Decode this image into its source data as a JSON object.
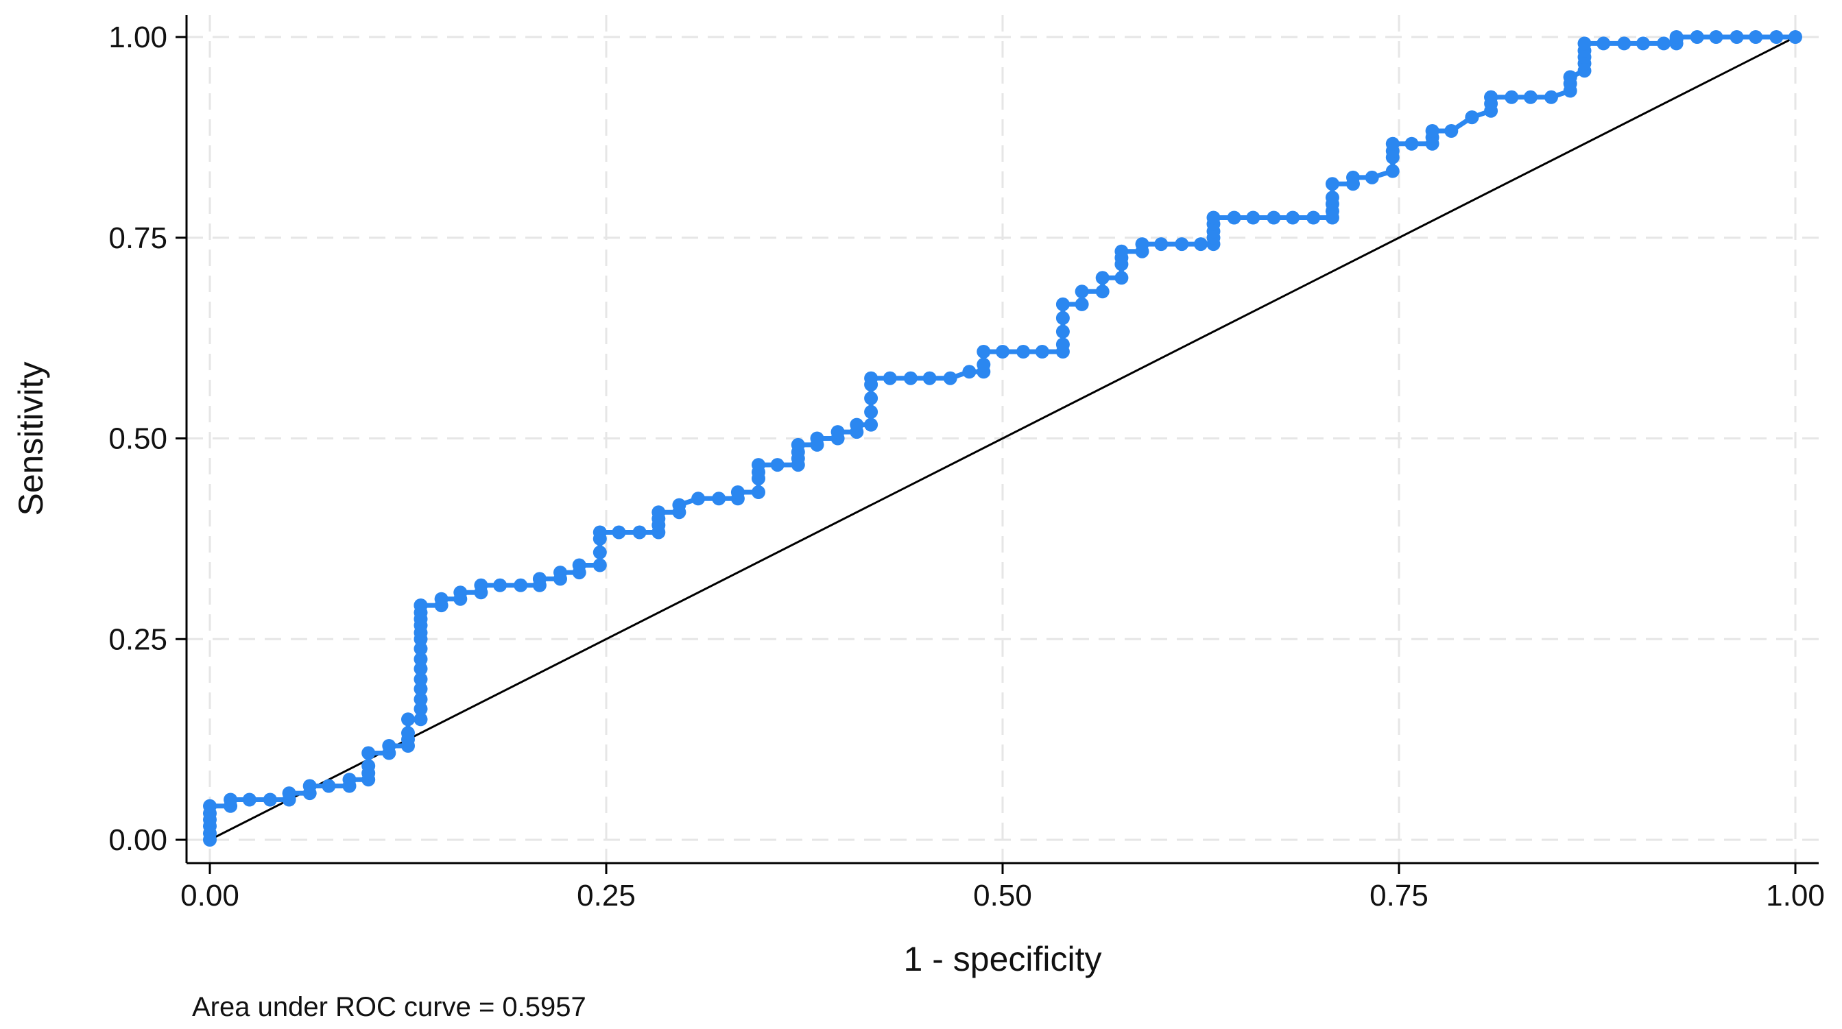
{
  "chart_data": {
    "type": "line",
    "title": "",
    "xlabel": "1 - specificity",
    "ylabel": "Sensitivity",
    "xlim": [
      0,
      1
    ],
    "ylim": [
      0,
      1
    ],
    "x_ticks": [
      "0.00",
      "0.25",
      "0.50",
      "0.75",
      "1.00"
    ],
    "y_ticks": [
      "0.00",
      "0.25",
      "0.50",
      "0.75",
      "1.00"
    ],
    "grid": true,
    "legend": "none",
    "note": "Area under ROC curve = 0.5957",
    "colors": {
      "roc": "#2b87f0",
      "reference": "#000000",
      "grid": "#e6e6e6"
    },
    "reference_line": {
      "x": [
        0,
        1
      ],
      "y": [
        0,
        1
      ]
    },
    "series": [
      {
        "marker": "circle",
        "x": [
          0.0,
          0.0,
          0.0,
          0.0,
          0.0,
          0.0,
          0.013,
          0.013,
          0.025,
          0.038,
          0.05,
          0.05,
          0.063,
          0.063,
          0.075,
          0.088,
          0.088,
          0.1,
          0.1,
          0.1,
          0.1,
          0.113,
          0.113,
          0.125,
          0.125,
          0.125,
          0.125,
          0.133,
          0.133,
          0.133,
          0.133,
          0.133,
          0.133,
          0.133,
          0.133,
          0.133,
          0.133,
          0.133,
          0.133,
          0.133,
          0.133,
          0.133,
          0.133,
          0.146,
          0.146,
          0.158,
          0.158,
          0.171,
          0.171,
          0.183,
          0.196,
          0.208,
          0.208,
          0.221,
          0.221,
          0.233,
          0.233,
          0.246,
          0.246,
          0.246,
          0.246,
          0.258,
          0.271,
          0.283,
          0.283,
          0.283,
          0.283,
          0.296,
          0.296,
          0.308,
          0.321,
          0.333,
          0.333,
          0.346,
          0.346,
          0.346,
          0.346,
          0.358,
          0.371,
          0.371,
          0.371,
          0.371,
          0.383,
          0.383,
          0.396,
          0.396,
          0.408,
          0.408,
          0.417,
          0.417,
          0.417,
          0.417,
          0.417,
          0.429,
          0.442,
          0.454,
          0.467,
          0.479,
          0.488,
          0.488,
          0.488,
          0.5,
          0.513,
          0.525,
          0.538,
          0.538,
          0.538,
          0.538,
          0.538,
          0.55,
          0.55,
          0.563,
          0.563,
          0.575,
          0.575,
          0.575,
          0.575,
          0.588,
          0.588,
          0.6,
          0.613,
          0.625,
          0.633,
          0.633,
          0.633,
          0.633,
          0.633,
          0.646,
          0.658,
          0.671,
          0.683,
          0.696,
          0.708,
          0.708,
          0.708,
          0.708,
          0.708,
          0.721,
          0.721,
          0.733,
          0.746,
          0.746,
          0.746,
          0.746,
          0.758,
          0.771,
          0.771,
          0.771,
          0.783,
          0.796,
          0.796,
          0.808,
          0.808,
          0.808,
          0.808,
          0.821,
          0.833,
          0.846,
          0.858,
          0.858,
          0.858,
          0.858,
          0.867,
          0.867,
          0.867,
          0.867,
          0.867,
          0.879,
          0.892,
          0.904,
          0.917,
          0.925,
          0.925,
          0.925,
          0.938,
          0.95,
          0.963,
          0.975,
          0.988,
          1.0
        ],
        "y": [
          0.0,
          0.008,
          0.017,
          0.025,
          0.033,
          0.042,
          0.042,
          0.05,
          0.05,
          0.05,
          0.05,
          0.058,
          0.058,
          0.067,
          0.067,
          0.067,
          0.075,
          0.075,
          0.083,
          0.092,
          0.108,
          0.108,
          0.117,
          0.117,
          0.125,
          0.133,
          0.15,
          0.15,
          0.163,
          0.175,
          0.188,
          0.2,
          0.213,
          0.225,
          0.238,
          0.25,
          0.258,
          0.267,
          0.275,
          0.283,
          0.292,
          0.292,
          0.292,
          0.292,
          0.3,
          0.3,
          0.308,
          0.308,
          0.317,
          0.317,
          0.317,
          0.317,
          0.325,
          0.325,
          0.333,
          0.333,
          0.342,
          0.342,
          0.358,
          0.375,
          0.383,
          0.383,
          0.383,
          0.383,
          0.392,
          0.4,
          0.408,
          0.408,
          0.417,
          0.425,
          0.425,
          0.425,
          0.433,
          0.433,
          0.45,
          0.458,
          0.467,
          0.467,
          0.467,
          0.475,
          0.483,
          0.492,
          0.492,
          0.5,
          0.5,
          0.508,
          0.508,
          0.517,
          0.517,
          0.533,
          0.55,
          0.567,
          0.575,
          0.575,
          0.575,
          0.575,
          0.575,
          0.583,
          0.583,
          0.592,
          0.608,
          0.608,
          0.608,
          0.608,
          0.608,
          0.617,
          0.633,
          0.65,
          0.667,
          0.667,
          0.683,
          0.683,
          0.7,
          0.7,
          0.717,
          0.725,
          0.733,
          0.733,
          0.742,
          0.742,
          0.742,
          0.742,
          0.742,
          0.75,
          0.758,
          0.767,
          0.775,
          0.775,
          0.775,
          0.775,
          0.775,
          0.775,
          0.775,
          0.783,
          0.792,
          0.8,
          0.817,
          0.817,
          0.825,
          0.825,
          0.833,
          0.85,
          0.858,
          0.867,
          0.867,
          0.867,
          0.875,
          0.883,
          0.883,
          0.9,
          0.9,
          0.908,
          0.917,
          0.925,
          0.925,
          0.925,
          0.925,
          0.925,
          0.933,
          0.942,
          0.95,
          0.95,
          0.958,
          0.967,
          0.975,
          0.983,
          0.992,
          0.992,
          0.992,
          0.992,
          0.992,
          0.992,
          0.997,
          1.0,
          1.0,
          1.0,
          1.0,
          1.0,
          1.0,
          1.0
        ]
      }
    ]
  }
}
